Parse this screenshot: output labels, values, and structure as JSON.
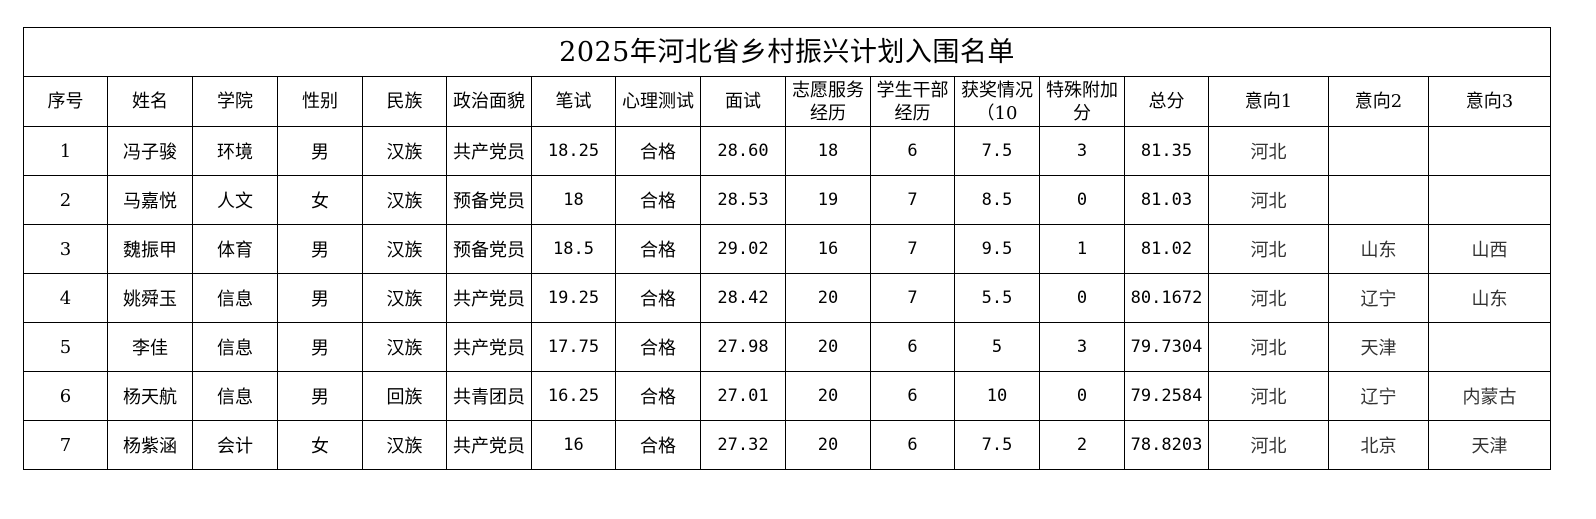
{
  "title": "2025年河北省乡村振兴计划入围名单",
  "headers": [
    "序号",
    "姓名",
    "学院",
    "性别",
    "民族",
    "政治面貌",
    "笔试",
    "心理测试",
    "面试",
    "志愿服务经历",
    "学生干部经历",
    "获奖情况（10",
    "特殊附加分",
    "总分",
    "意向1",
    "意向2",
    "意向3"
  ],
  "rows": [
    [
      "1",
      "冯子骏",
      "环境",
      "男",
      "汉族",
      "共产党员",
      "18.25",
      "合格",
      "28.60",
      "18",
      "6",
      "7.5",
      "3",
      "81.35",
      "河北",
      "",
      ""
    ],
    [
      "2",
      "马嘉悦",
      "人文",
      "女",
      "汉族",
      "预备党员",
      "18",
      "合格",
      "28.53",
      "19",
      "7",
      "8.5",
      "0",
      "81.03",
      "河北",
      "",
      ""
    ],
    [
      "3",
      "魏振甲",
      "体育",
      "男",
      "汉族",
      "预备党员",
      "18.5",
      "合格",
      "29.02",
      "16",
      "7",
      "9.5",
      "1",
      "81.02",
      "河北",
      "山东",
      "山西"
    ],
    [
      "4",
      "姚舜玉",
      "信息",
      "男",
      "汉族",
      "共产党员",
      "19.25",
      "合格",
      "28.42",
      "20",
      "7",
      "5.5",
      "0",
      "80.1672",
      "河北",
      "辽宁",
      "山东"
    ],
    [
      "5",
      "李佳",
      "信息",
      "男",
      "汉族",
      "共产党员",
      "17.75",
      "合格",
      "27.98",
      "20",
      "6",
      "5",
      "3",
      "79.7304",
      "河北",
      "天津",
      ""
    ],
    [
      "6",
      "杨天航",
      "信息",
      "男",
      "回族",
      "共青团员",
      "16.25",
      "合格",
      "27.01",
      "20",
      "6",
      "10",
      "0",
      "79.2584",
      "河北",
      "辽宁",
      "内蒙古"
    ],
    [
      "7",
      "杨紫涵",
      "会计",
      "女",
      "汉族",
      "共产党员",
      "16",
      "合格",
      "27.32",
      "20",
      "6",
      "7.5",
      "2",
      "78.8203",
      "河北",
      "北京",
      "天津"
    ]
  ]
}
